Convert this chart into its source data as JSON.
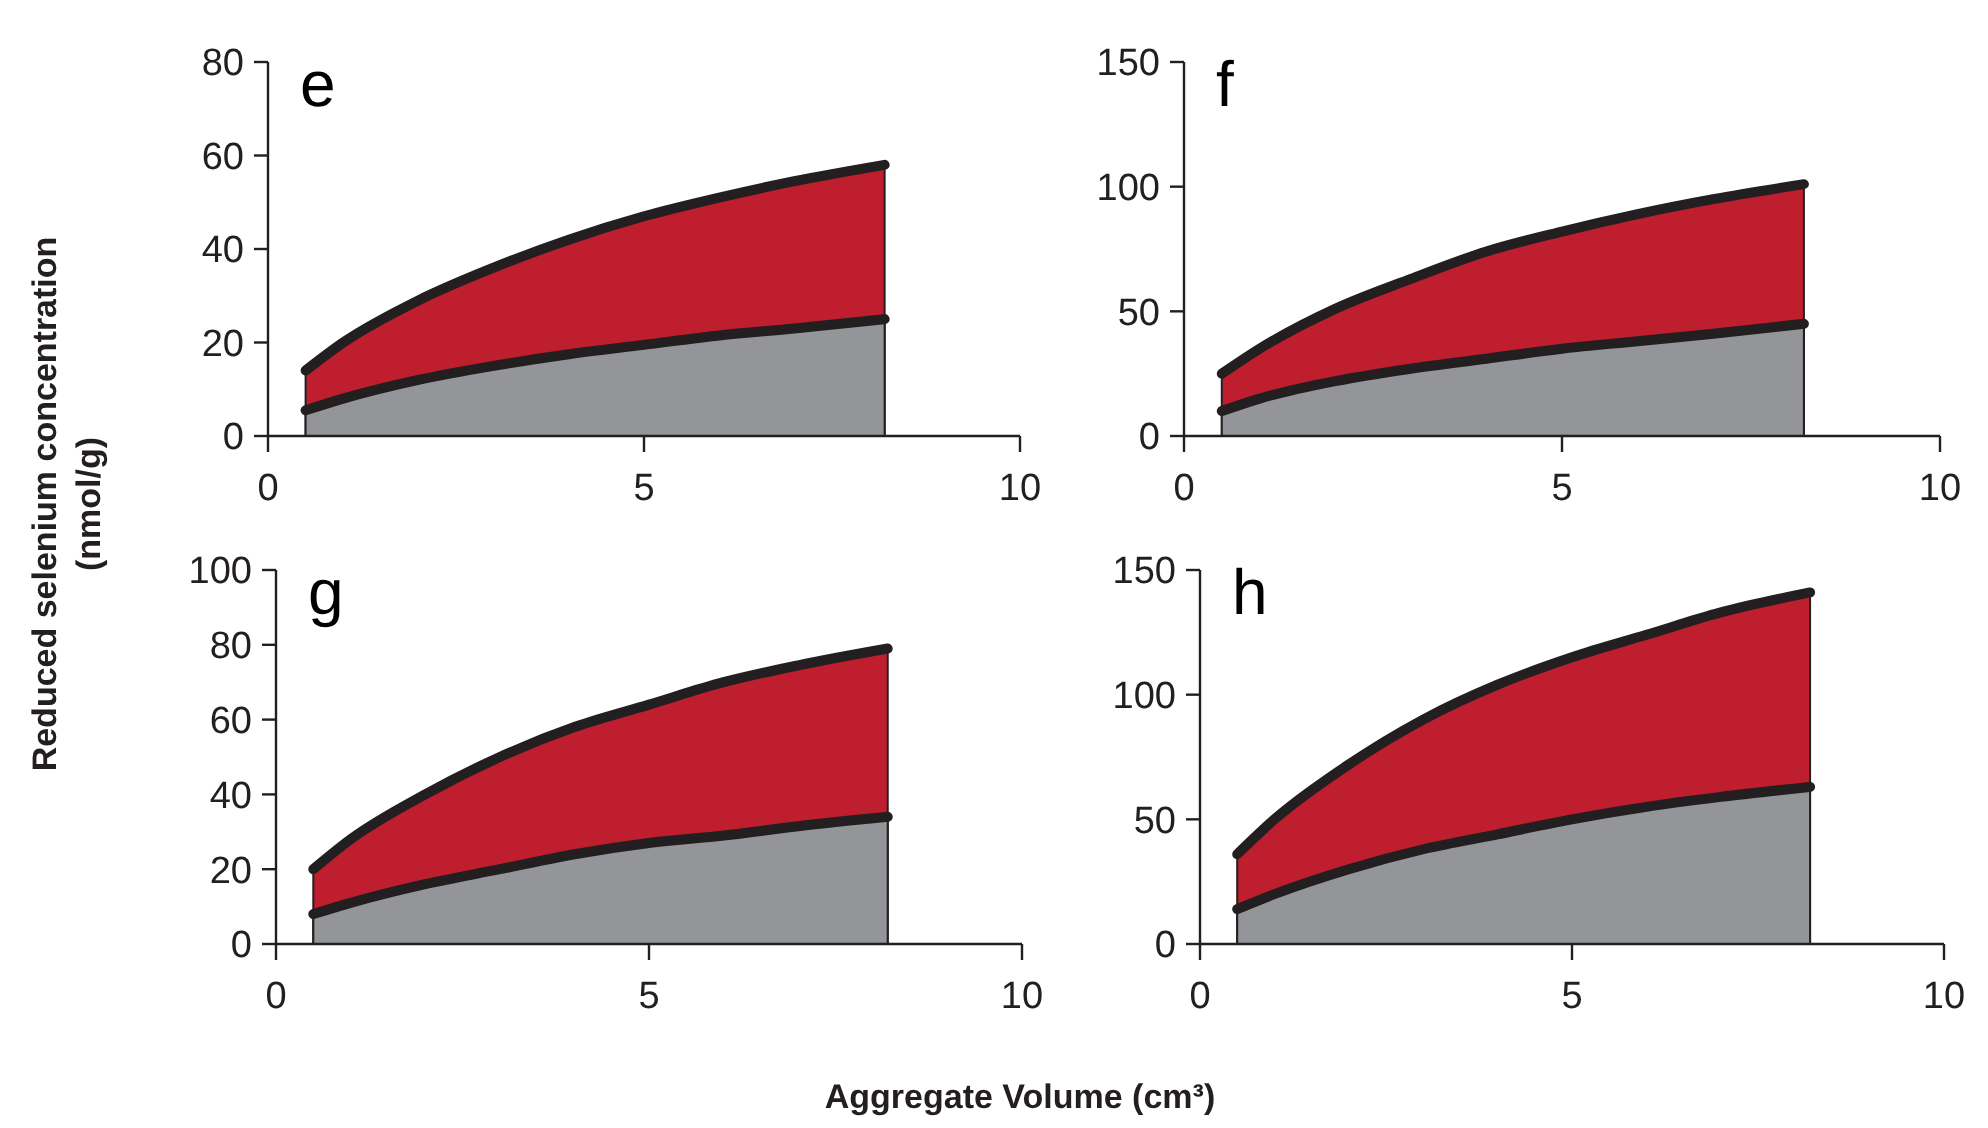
{
  "chart_data": [
    {
      "type": "area",
      "title": "e",
      "ylabel": "Reduced selenium concentration\n(nmol/g)",
      "x": [
        0.5,
        1,
        2,
        3,
        4,
        5,
        6,
        7,
        8.2
      ],
      "xlim": [
        0,
        10
      ],
      "xticks": [
        0,
        5,
        10
      ],
      "ylim": [
        0,
        80
      ],
      "yticks": [
        0,
        20,
        40,
        60,
        80
      ],
      "series": [
        {
          "color": "#be1e2d",
          "values": [
            14,
            20,
            29,
            36,
            42,
            47,
            51,
            54.5,
            58
          ]
        },
        {
          "color": "#939598",
          "values": [
            5.5,
            8,
            12,
            15,
            17.5,
            19.5,
            21.5,
            23,
            25
          ]
        }
      ]
    },
    {
      "type": "area",
      "title": "f",
      "x": [
        0.5,
        1,
        2,
        3,
        4,
        5,
        6,
        7,
        8.2
      ],
      "xlim": [
        0,
        10
      ],
      "xticks": [
        0,
        5,
        10
      ],
      "ylim": [
        0,
        150
      ],
      "yticks": [
        0,
        50,
        100,
        150
      ],
      "series": [
        {
          "color": "#be1e2d",
          "values": [
            25,
            35,
            51,
            63,
            74,
            82,
            89,
            95,
            101
          ]
        },
        {
          "color": "#939598",
          "values": [
            10,
            15,
            22,
            27,
            31,
            35,
            38,
            41,
            45
          ]
        }
      ]
    },
    {
      "type": "area",
      "title": "g",
      "x": [
        0.5,
        1,
        2,
        3,
        4,
        5,
        6,
        7,
        8.2
      ],
      "xlim": [
        0,
        10
      ],
      "xticks": [
        0,
        5,
        10
      ],
      "ylim": [
        0,
        100
      ],
      "yticks": [
        0,
        20,
        40,
        60,
        80,
        100
      ],
      "series": [
        {
          "color": "#be1e2d",
          "values": [
            20,
            28,
            40,
            50,
            58,
            64,
            70,
            74.5,
            79
          ]
        },
        {
          "color": "#939598",
          "values": [
            8,
            11,
            16,
            20,
            24,
            27,
            29,
            31.5,
            34
          ]
        }
      ]
    },
    {
      "type": "area",
      "title": "h",
      "xlabel": "Aggregate Volume (cm³)",
      "x": [
        0.5,
        1,
        2,
        3,
        4,
        5,
        6,
        7,
        8.2
      ],
      "xlim": [
        0,
        10
      ],
      "xticks": [
        0,
        5,
        10
      ],
      "ylim": [
        0,
        150
      ],
      "yticks": [
        0,
        50,
        100,
        150
      ],
      "series": [
        {
          "color": "#be1e2d",
          "values": [
            36,
            50,
            72,
            90,
            104,
            115,
            124,
            133,
            141
          ]
        },
        {
          "color": "#939598",
          "values": [
            14,
            20,
            30,
            38,
            44,
            50,
            55,
            59,
            63
          ]
        }
      ]
    }
  ]
}
